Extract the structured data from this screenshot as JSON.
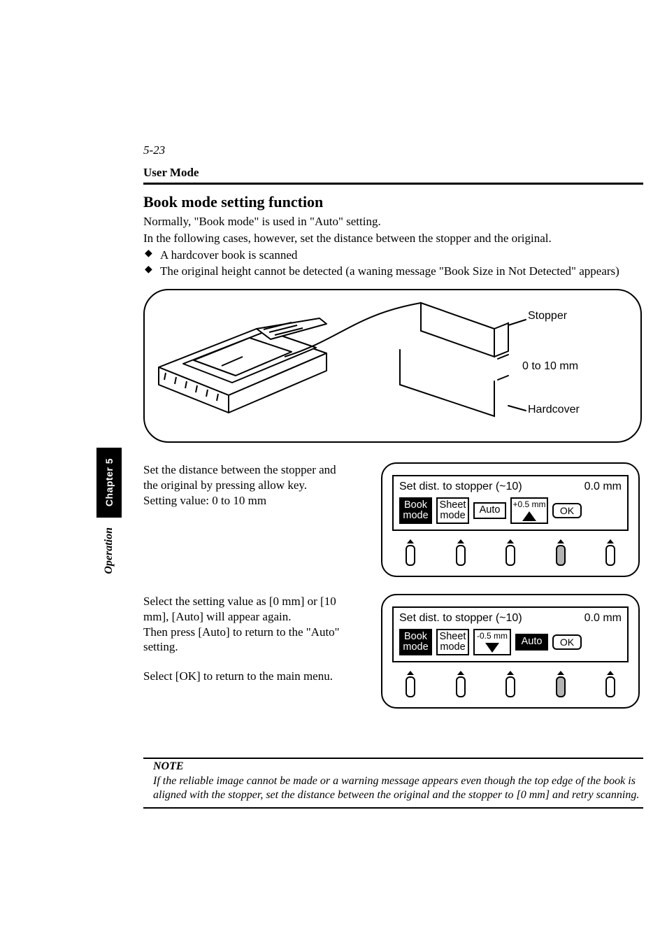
{
  "page_number": "5-23",
  "header": "User Mode",
  "title": "Book mode setting function",
  "intro": {
    "line1": "Normally, \"Book mode\" is used in \"Auto\" setting.",
    "line2": "In the following cases, however, set the distance between the stopper and the original.",
    "bullets": [
      "A hardcover book is scanned",
      "The original height cannot be detected (a waning message \"Book Size in Not Detected\" appears)"
    ]
  },
  "illustration": {
    "callouts": {
      "stopper": "Stopper",
      "range": "0 to 10 mm",
      "hardcover": "Hardcover"
    },
    "callout_font_family": "Helvetica, Arial, sans-serif",
    "callout_fontsize": 16,
    "border_radius": 36,
    "border_width": 2
  },
  "steps": [
    {
      "text_lines": [
        "Set the distance between the stopper and the original by pressing allow key.",
        "Setting value: 0 to 10 mm"
      ],
      "screen": {
        "title_left": "Set dist. to stopper (~10)",
        "title_right": "0.0 mm",
        "keys": [
          {
            "type": "mode",
            "label_top": "Book",
            "label_bot": "mode",
            "selected": true
          },
          {
            "type": "mode",
            "label_top": "Sheet",
            "label_bot": "mode",
            "selected": false
          },
          {
            "type": "auto",
            "label": "Auto",
            "selected": false
          },
          {
            "type": "step",
            "label": "+0.5 mm",
            "arrow": "up"
          },
          {
            "type": "ok",
            "label": "OK"
          }
        ],
        "selected_phys_index": 3
      }
    },
    {
      "text_lines": [
        "Select the setting value as [0 mm] or [10 mm], [Auto] will appear again.",
        "Then press [Auto] to return to the \"Auto\" setting.",
        "",
        "Select [OK] to return to the main menu."
      ],
      "screen": {
        "title_left": "Set dist. to stopper (~10)",
        "title_right": "0.0 mm",
        "keys": [
          {
            "type": "mode",
            "label_top": "Book",
            "label_bot": "mode",
            "selected": true
          },
          {
            "type": "mode",
            "label_top": "Sheet",
            "label_bot": "mode",
            "selected": false
          },
          {
            "type": "step",
            "label": "-0.5 mm",
            "arrow": "down"
          },
          {
            "type": "auto",
            "label": "Auto",
            "selected": true
          },
          {
            "type": "ok",
            "label": "OK"
          }
        ],
        "selected_phys_index": 3
      }
    }
  ],
  "note": {
    "heading": "NOTE",
    "body": "If the reliable image cannot be made or a warning message appears even though the top edge of the book is aligned with the stopper, set the distance between the original and the stopper to [0 mm] and retry scanning."
  },
  "sidetab": {
    "chapter": "Chapter 5",
    "section": "Operation"
  },
  "colors": {
    "text": "#000000",
    "bg": "#ffffff",
    "sel_button": "#b3b3b3"
  }
}
